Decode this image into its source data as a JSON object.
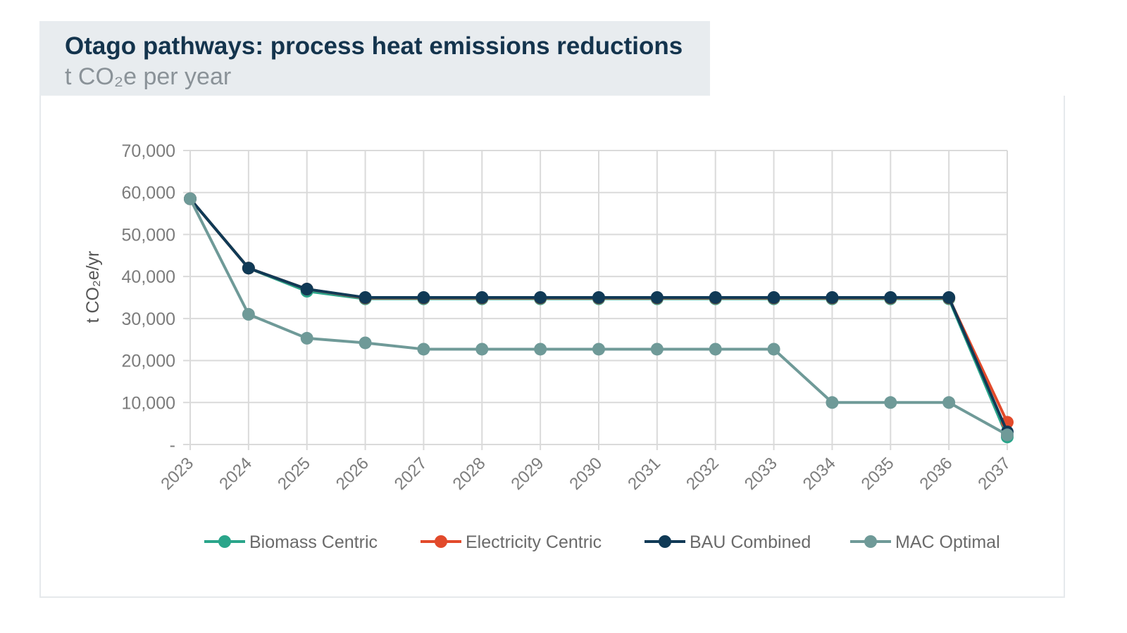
{
  "colors": {
    "grid": "#dadada",
    "tick_text": "#7c7c7c",
    "title": "#14344d",
    "subtitle": "#8a9298"
  },
  "chart_data": {
    "type": "line",
    "title": "Otago pathways: process heat emissions reductions",
    "subtitle": "t CO₂e per year",
    "ylabel": "t CO₂e/yr",
    "xlabel": "",
    "ylim": [
      0,
      70000
    ],
    "grid": true,
    "legend_position": "bottom",
    "categories": [
      "2023",
      "2024",
      "2025",
      "2026",
      "2027",
      "2028",
      "2029",
      "2030",
      "2031",
      "2032",
      "2033",
      "2034",
      "2035",
      "2036",
      "2037"
    ],
    "y_ticks": [
      0,
      10000,
      20000,
      30000,
      40000,
      50000,
      60000,
      70000
    ],
    "y_tick_labels": [
      "-",
      "10,000",
      "20,000",
      "30,000",
      "40,000",
      "50,000",
      "60,000",
      "70,000"
    ],
    "series": [
      {
        "name": "Biomass Centric",
        "color": "#2aa58a",
        "values": [
          58500,
          42000,
          36500,
          34700,
          34700,
          34700,
          34700,
          34700,
          34700,
          34700,
          34700,
          34700,
          34700,
          34700,
          1800
        ]
      },
      {
        "name": "Electricity Centric",
        "color": "#e24a2b",
        "values": [
          58500,
          42000,
          37000,
          34900,
          34900,
          34900,
          34900,
          34900,
          34900,
          34900,
          34900,
          34900,
          34900,
          34900,
          5300
        ]
      },
      {
        "name": "BAU Combined",
        "color": "#103a56",
        "values": [
          58500,
          42000,
          37000,
          35000,
          35000,
          35000,
          35000,
          35000,
          35000,
          35000,
          35000,
          35000,
          35000,
          35000,
          3000
        ]
      },
      {
        "name": "MAC Optimal",
        "color": "#6f9a98",
        "values": [
          58500,
          31000,
          25300,
          24200,
          22700,
          22700,
          22700,
          22700,
          22700,
          22700,
          22700,
          10000,
          10000,
          10000,
          2300
        ]
      }
    ]
  }
}
